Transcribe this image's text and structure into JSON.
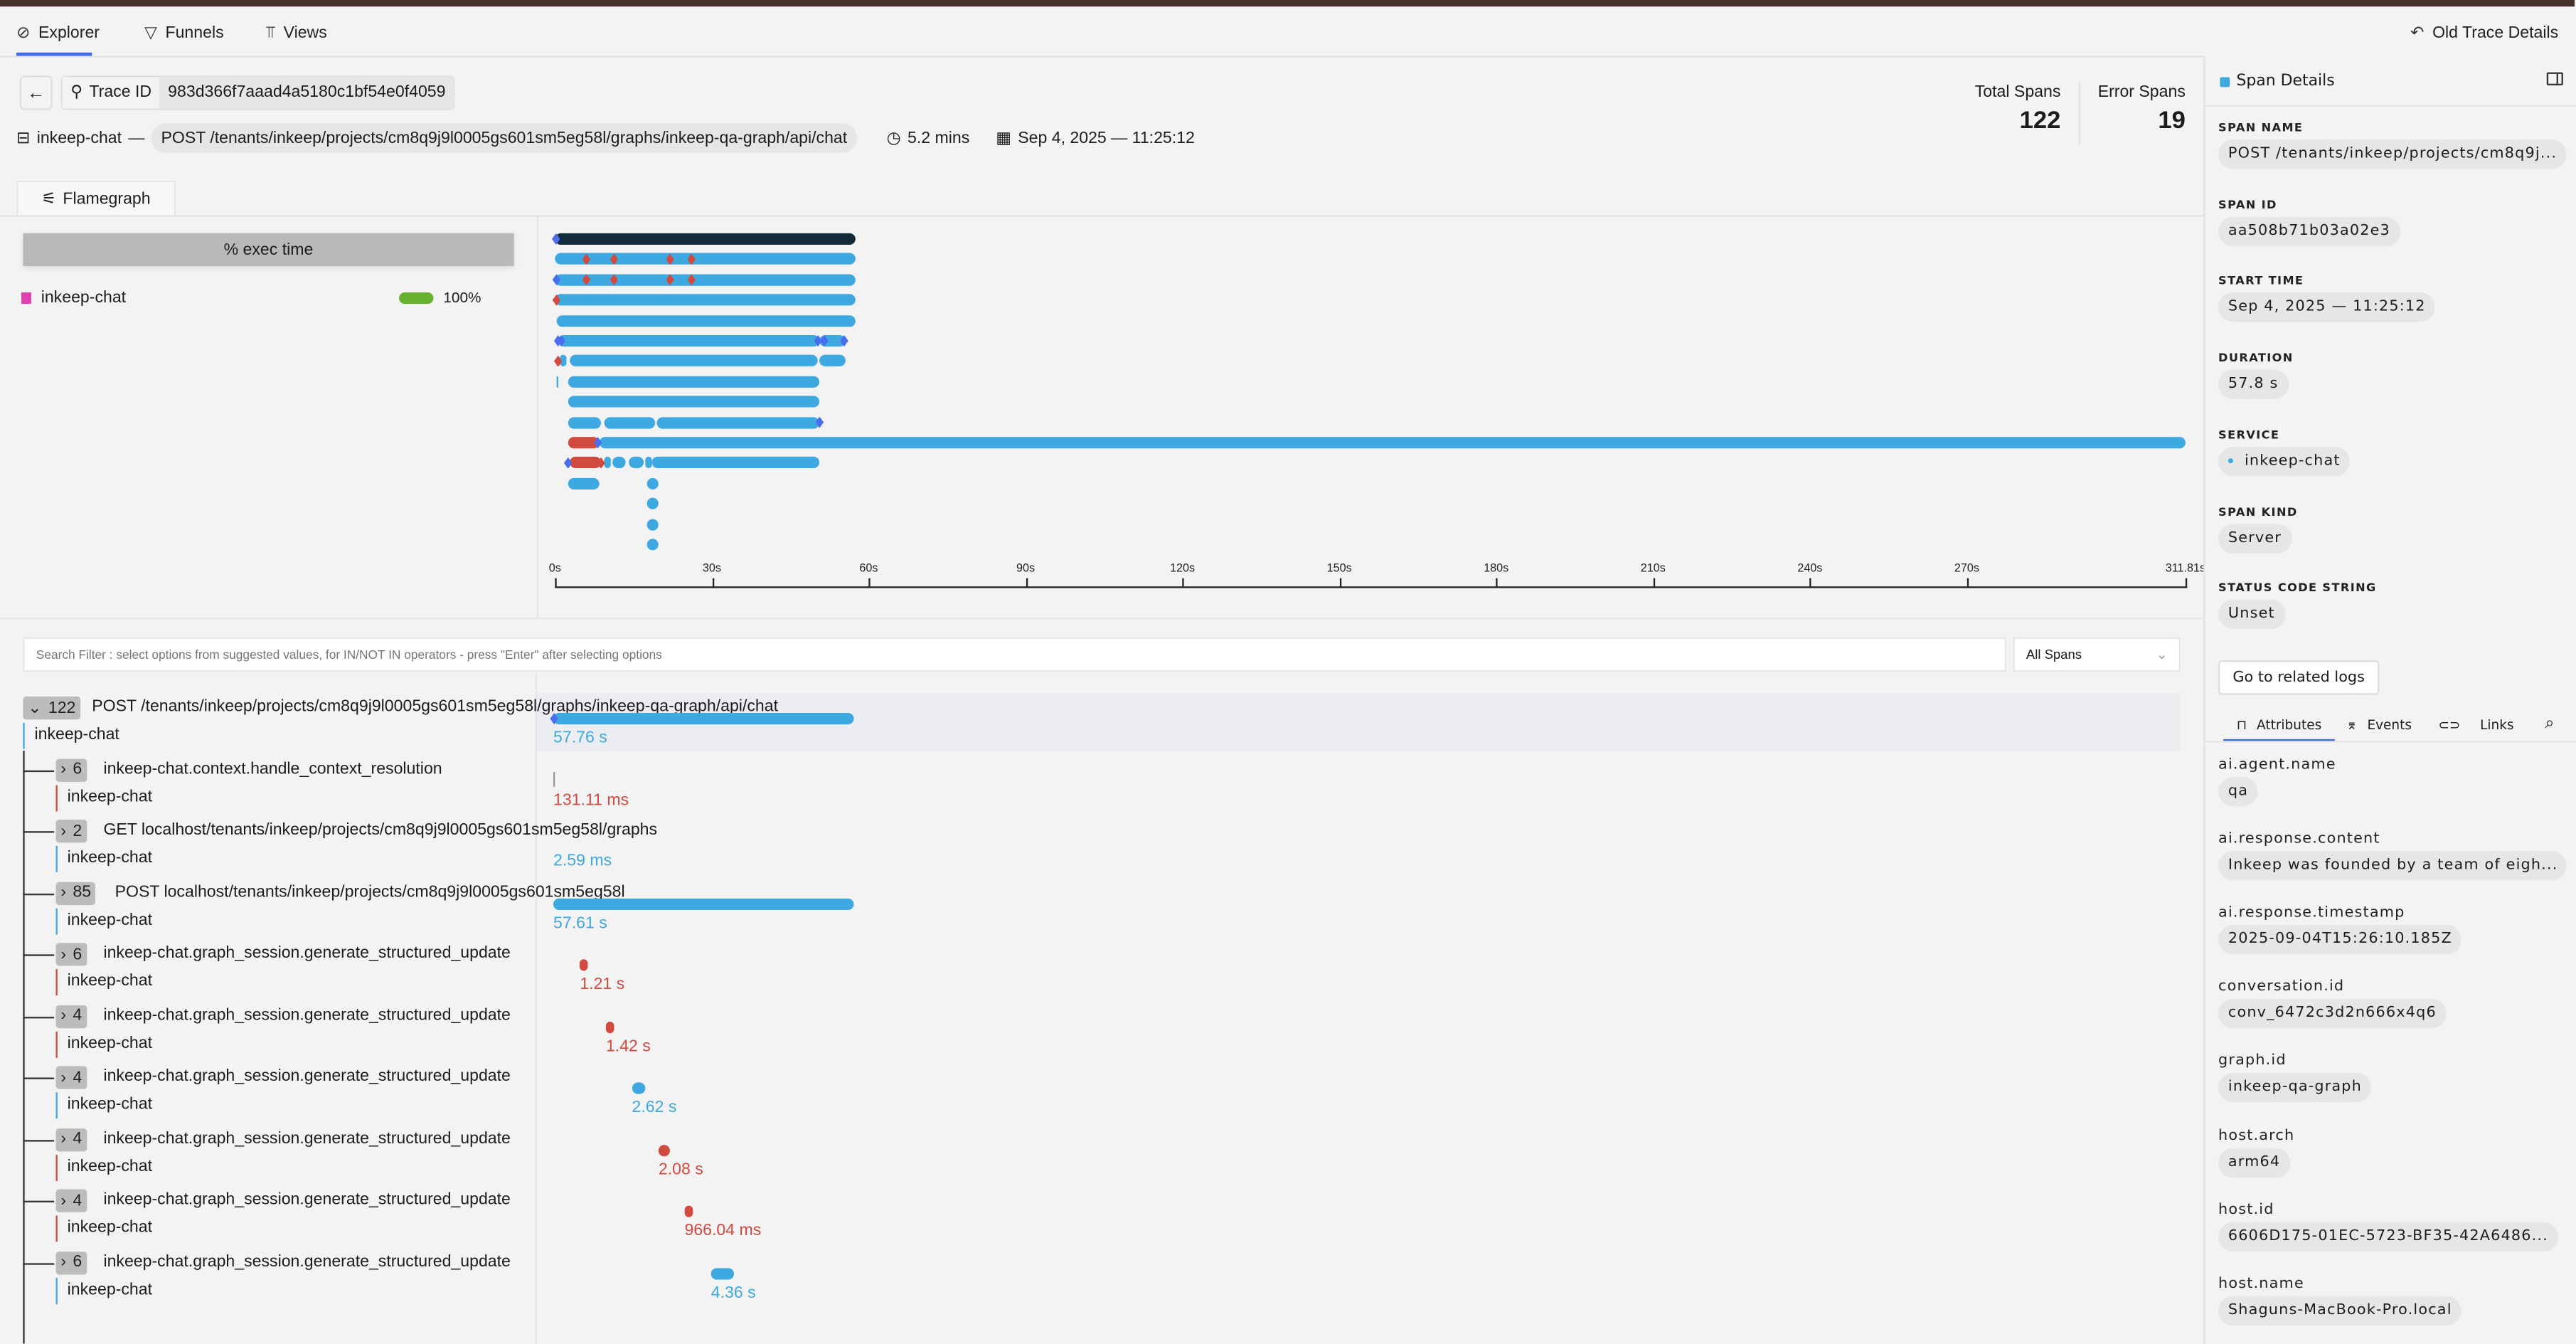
{
  "nav": {
    "tabs": [
      {
        "label": "Explorer",
        "icon": "compass-icon",
        "active": true
      },
      {
        "label": "Funnels",
        "icon": "funnel-icon"
      },
      {
        "label": "Views",
        "icon": "views-icon"
      }
    ],
    "old_trace_details": "Old Trace Details"
  },
  "trace": {
    "id_label": "Trace ID",
    "id_value": "983d366f7aaad4a5180c1bf54e0f4059",
    "service": "inkeep-chat",
    "separator": "—",
    "root_span": "POST /tenants/inkeep/projects/cm8q9j9l0005gs601sm5eg58l/graphs/inkeep-qa-graph/api/chat",
    "duration": "5.2 mins",
    "start": "Sep 4, 2025 — 11:25:12"
  },
  "stats": {
    "total_label": "Total Spans",
    "total_value": "122",
    "error_label": "Error Spans",
    "error_value": "19"
  },
  "flamegraph_tab": "Flamegraph",
  "exec_time": {
    "button": "% exec time",
    "services": [
      {
        "name": "inkeep-chat",
        "percent": "100%",
        "color": "#e040b0",
        "bar_color": "#66b22e"
      }
    ]
  },
  "colors": {
    "ok": "#3ea8e0",
    "error": "#d14a40",
    "root": "#122b3a",
    "event_ok": "#4a6ef0",
    "accent": "#3b6ae8"
  },
  "flamegraph": {
    "axis_ticks": [
      "0s",
      "30s",
      "60s",
      "90s",
      "120s",
      "150s",
      "180s",
      "210s",
      "240s",
      "270s",
      "311.81s"
    ],
    "axis_max_s": 311.81,
    "rows": [
      {
        "segments": [
          [
            0,
            57.5,
            "root"
          ]
        ],
        "events": [
          [
            0.2,
            "ok"
          ]
        ]
      },
      {
        "segments": [
          [
            0,
            57.5,
            "ok"
          ]
        ],
        "events": [
          [
            6,
            "error"
          ],
          [
            11.3,
            "error"
          ],
          [
            22,
            "error"
          ],
          [
            26.1,
            "error"
          ]
        ]
      },
      {
        "segments": [
          [
            0,
            57.5,
            "ok"
          ]
        ],
        "events": [
          [
            0.3,
            "ok"
          ],
          [
            6,
            "error"
          ],
          [
            11.3,
            "error"
          ],
          [
            22,
            "error"
          ],
          [
            26.1,
            "error"
          ]
        ]
      },
      {
        "segments": [
          [
            0,
            57.5,
            "ok"
          ]
        ],
        "events": [
          [
            0.3,
            "error"
          ]
        ]
      },
      {
        "segments": [
          [
            0.3,
            57.5,
            "ok"
          ]
        ],
        "events": []
      },
      {
        "segments": [
          [
            0.6,
            50.5,
            "ok"
          ],
          [
            50.7,
            55.6,
            "ok"
          ]
        ],
        "events": [
          [
            0.6,
            "ok"
          ],
          [
            1.2,
            "ok"
          ],
          [
            50.3,
            "ok"
          ],
          [
            51.5,
            "ok"
          ],
          [
            55.3,
            "ok"
          ]
        ]
      },
      {
        "segments": [
          [
            0.9,
            2.2,
            "ok"
          ],
          [
            2.8,
            50.3,
            "ok"
          ],
          [
            50.6,
            55.6,
            "ok"
          ]
        ],
        "events": [
          [
            0.6,
            "error"
          ]
        ]
      },
      {
        "segments": [
          [
            0.3,
            0.6,
            "ok"
          ],
          [
            2.5,
            50.6,
            "ok"
          ]
        ],
        "events": []
      },
      {
        "segments": [
          [
            2.5,
            50.6,
            "ok"
          ]
        ],
        "events": []
      },
      {
        "segments": [
          [
            2.5,
            8.8,
            "ok"
          ],
          [
            9.4,
            19.2,
            "ok"
          ],
          [
            19.5,
            50.6,
            "ok"
          ]
        ],
        "events": [
          [
            50.6,
            "ok"
          ]
        ]
      },
      {
        "segments": [
          [
            2.5,
            8.5,
            "error"
          ],
          [
            8.5,
            311.81,
            "ok"
          ]
        ],
        "events": [
          [
            8.2,
            "ok"
          ]
        ]
      },
      {
        "segments": [
          [
            2.8,
            8.8,
            "error"
          ],
          [
            9.4,
            10.7,
            "ok"
          ],
          [
            11,
            13.5,
            "ok"
          ],
          [
            14.1,
            17,
            "ok"
          ],
          [
            17.3,
            18.5,
            "ok"
          ],
          [
            18.5,
            50.6,
            "ok"
          ]
        ],
        "events": [
          [
            2.5,
            "ok"
          ],
          [
            8.8,
            "error"
          ]
        ]
      },
      {
        "segments": [
          [
            2.5,
            8.5,
            "ok"
          ],
          [
            17.6,
            19.8,
            "ok"
          ]
        ],
        "events": []
      },
      {
        "segments": [
          [
            17.6,
            19.8,
            "ok"
          ]
        ],
        "events": []
      },
      {
        "segments": [
          [
            17.6,
            19.8,
            "ok"
          ]
        ],
        "events": []
      },
      {
        "segments": [
          [
            17.6,
            19.8,
            "ok"
          ]
        ],
        "events": []
      }
    ]
  },
  "search": {
    "placeholder": "Search Filter : select options from suggested values, for IN/NOT IN operators - press \"Enter\" after selecting options",
    "select_value": "All Spans"
  },
  "spans": [
    {
      "count": "122",
      "expanded": true,
      "name": "POST /tenants/inkeep/projects/cm8q9j9l0005gs601sm5eg58l/graphs/inkeep-qa-graph/api/chat",
      "service": "inkeep-chat",
      "status": "ok",
      "start_s": 0,
      "dur_s": 57.76,
      "duration": "57.76 s"
    },
    {
      "count": "6",
      "name": "inkeep-chat.context.handle_context_resolution",
      "service": "inkeep-chat",
      "status": "error",
      "start_s": 0,
      "dur_s": 0.13,
      "duration": "131.11 ms"
    },
    {
      "count": "2",
      "name": "GET localhost/tenants/inkeep/projects/cm8q9j9l0005gs601sm5eg58l/graphs",
      "service": "inkeep-chat",
      "status": "ok",
      "start_s": 0,
      "dur_s": 0.003,
      "duration": "2.59 ms"
    },
    {
      "count": "85",
      "name": "POST localhost/tenants/inkeep/projects/cm8q9j9l0005gs601sm5eg58l",
      "service": "inkeep-chat",
      "status": "ok",
      "start_s": 0,
      "dur_s": 57.61,
      "duration": "57.61 s"
    },
    {
      "count": "6",
      "name": "inkeep-chat.graph_session.generate_structured_update",
      "service": "inkeep-chat",
      "status": "error",
      "start_s": 5.1,
      "dur_s": 1.21,
      "duration": "1.21 s"
    },
    {
      "count": "4",
      "name": "inkeep-chat.graph_session.generate_structured_update",
      "service": "inkeep-chat",
      "status": "error",
      "start_s": 10.1,
      "dur_s": 1.42,
      "duration": "1.42 s"
    },
    {
      "count": "4",
      "name": "inkeep-chat.graph_session.generate_structured_update",
      "service": "inkeep-chat",
      "status": "ok",
      "start_s": 15.1,
      "dur_s": 2.62,
      "duration": "2.62 s"
    },
    {
      "count": "4",
      "name": "inkeep-chat.graph_session.generate_structured_update",
      "service": "inkeep-chat",
      "status": "error",
      "start_s": 20.2,
      "dur_s": 2.08,
      "duration": "2.08 s"
    },
    {
      "count": "4",
      "name": "inkeep-chat.graph_session.generate_structured_update",
      "service": "inkeep-chat",
      "status": "error",
      "start_s": 25.2,
      "dur_s": 0.97,
      "duration": "966.04 ms"
    },
    {
      "count": "6",
      "name": "inkeep-chat.graph_session.generate_structured_update",
      "service": "inkeep-chat",
      "status": "ok",
      "start_s": 30.3,
      "dur_s": 4.36,
      "duration": "4.36 s"
    }
  ],
  "details": {
    "title": "Span Details",
    "fields": [
      {
        "label": "SPAN NAME",
        "value": "POST /tenants/inkeep/projects/cm8q9j..."
      },
      {
        "label": "SPAN ID",
        "value": "aa508b71b03a02e3"
      },
      {
        "label": "START TIME",
        "value": "Sep 4, 2025 — 11:25:12"
      },
      {
        "label": "DURATION",
        "value": "57.8 s"
      },
      {
        "label": "SERVICE",
        "value": "inkeep-chat"
      },
      {
        "label": "SPAN KIND",
        "value": "Server"
      },
      {
        "label": "STATUS CODE STRING",
        "value": "Unset"
      }
    ],
    "logs_button": "Go to related logs",
    "tabs": [
      {
        "label": "Attributes",
        "icon": "bookmark-icon",
        "active": true
      },
      {
        "label": "Events",
        "icon": "anvil-icon"
      },
      {
        "label": "Links",
        "icon": "link-icon"
      }
    ],
    "attributes": [
      {
        "key": "ai.agent.name",
        "value": "qa"
      },
      {
        "key": "ai.response.content",
        "value": "Inkeep was founded by a team of eigh..."
      },
      {
        "key": "ai.response.timestamp",
        "value": "2025-09-04T15:26:10.185Z"
      },
      {
        "key": "conversation.id",
        "value": "conv_6472c3d2n666x4q6"
      },
      {
        "key": "graph.id",
        "value": "inkeep-qa-graph"
      },
      {
        "key": "host.arch",
        "value": "arm64"
      },
      {
        "key": "host.id",
        "value": "6606D175-01EC-5723-BF35-42A6486..."
      },
      {
        "key": "host.name",
        "value": "Shaguns-MacBook-Pro.local"
      }
    ]
  }
}
